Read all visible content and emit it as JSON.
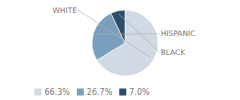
{
  "chart_data": {
    "type": "pie",
    "categories": [
      "WHITE",
      "HISPANIC",
      "BLACK"
    ],
    "values": [
      66.3,
      26.7,
      7.0
    ],
    "value_labels": [
      "66.3%",
      "26.7%",
      "7.0%"
    ],
    "colors": [
      "#d0d9e4",
      "#7a9fbe",
      "#2d4d6a"
    ],
    "legend": "bottom"
  }
}
